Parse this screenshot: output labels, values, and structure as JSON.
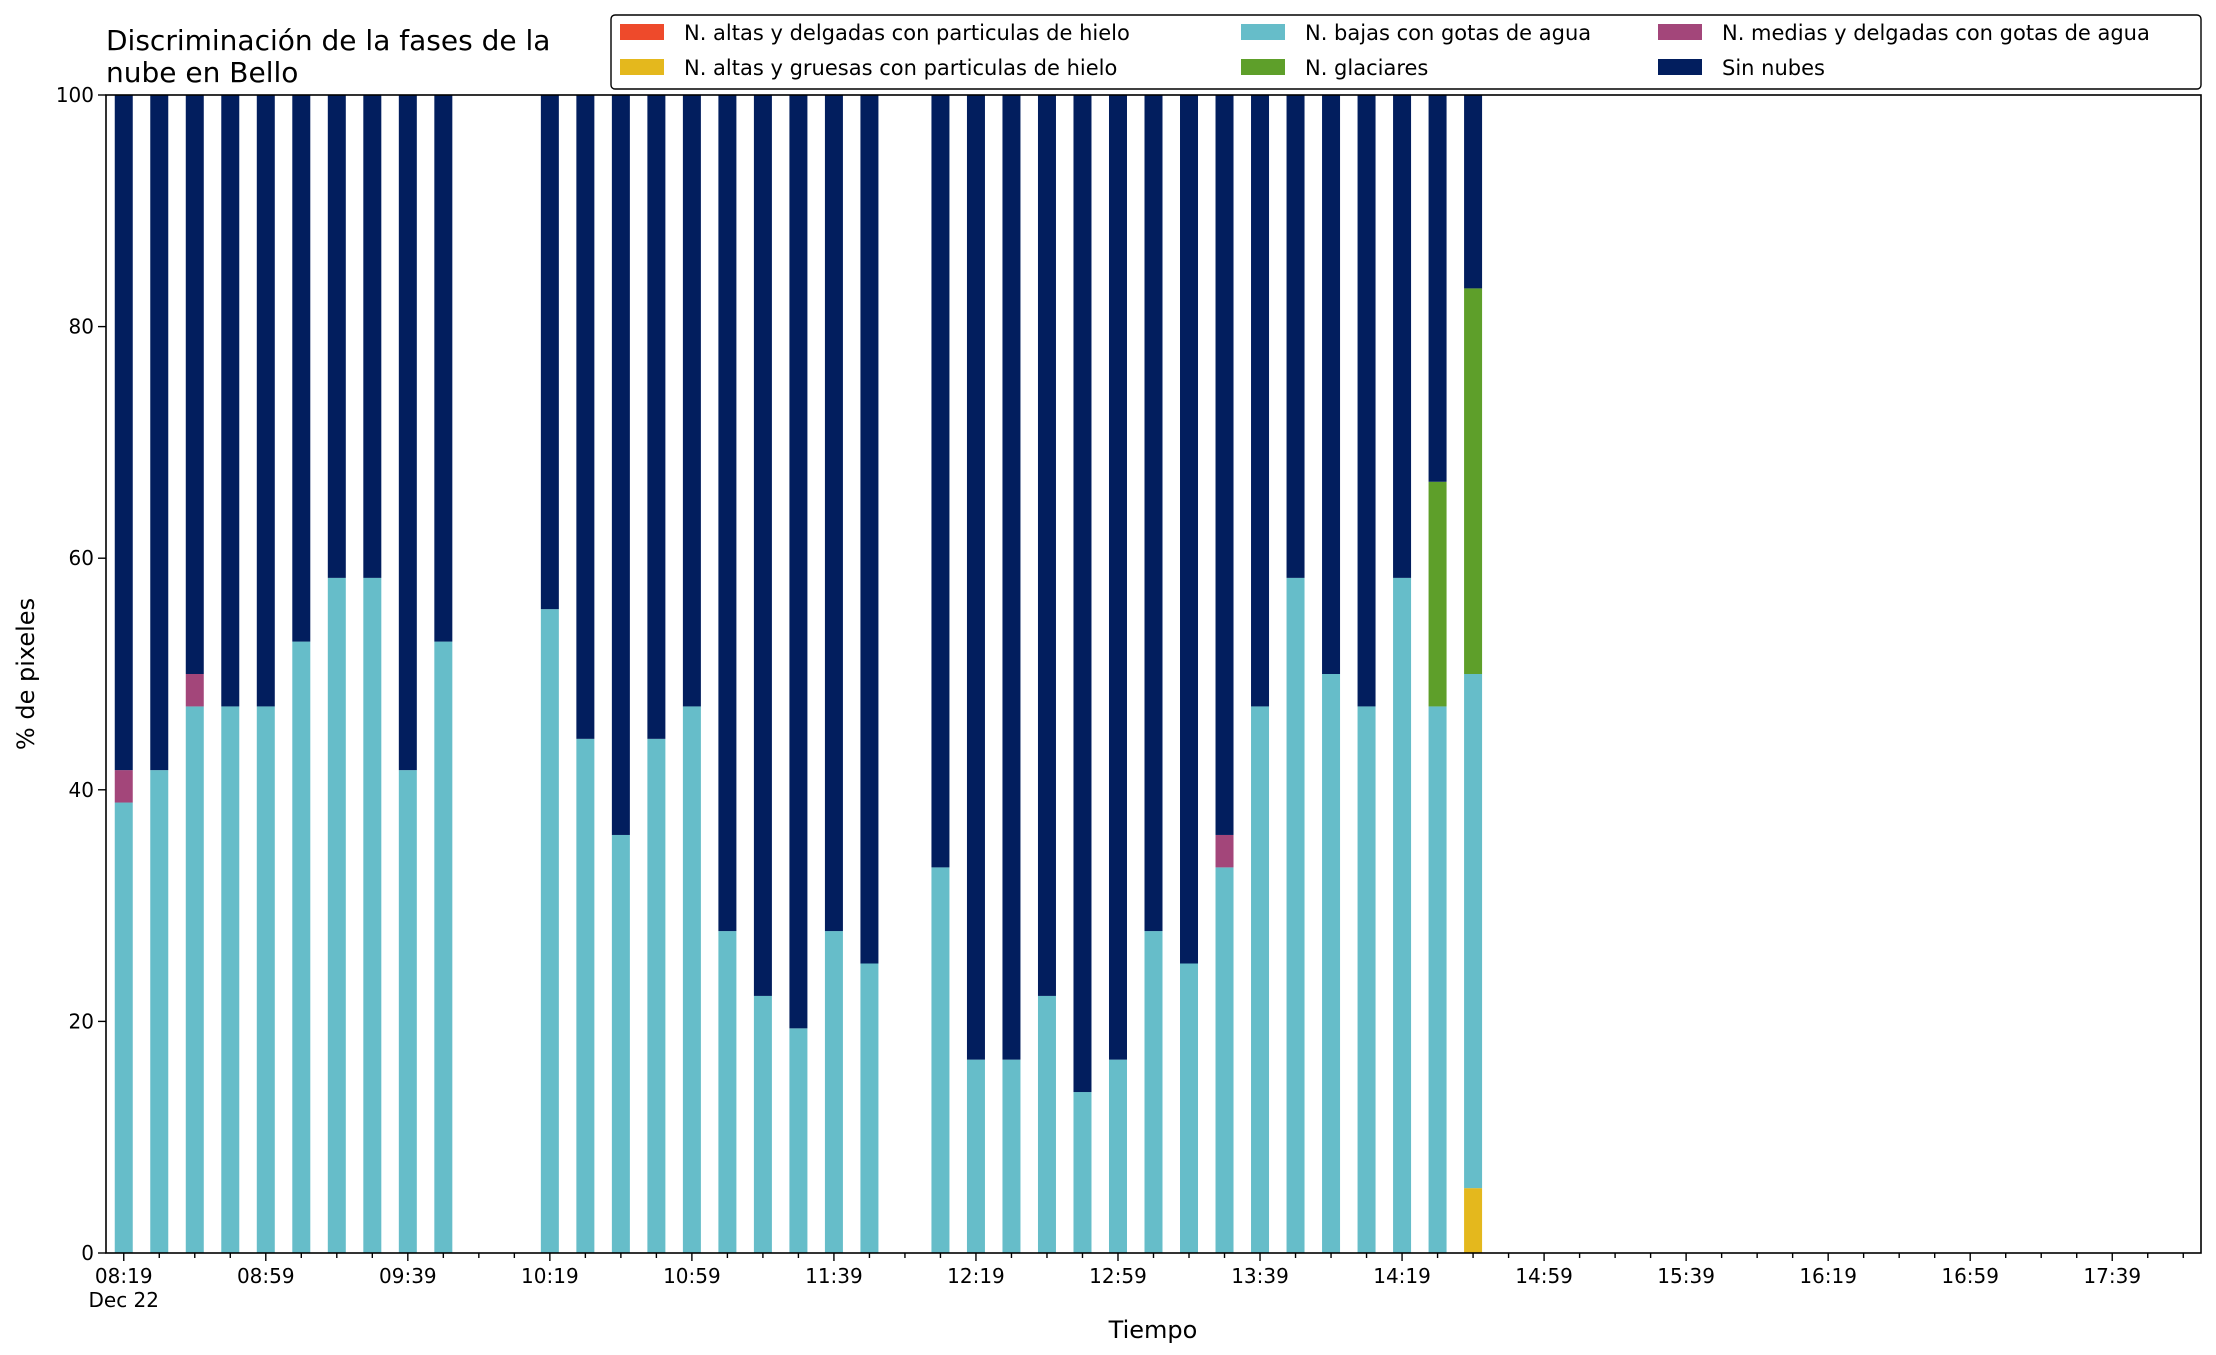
{
  "chart_data": {
    "type": "bar",
    "stacked": true,
    "title": [
      "Discriminación de la fases de la",
      "nube en Bello"
    ],
    "xlabel": "Tiempo",
    "ylabel": "% de pixeles",
    "ylim": [
      0,
      100
    ],
    "yticks": [
      0,
      20,
      40,
      60,
      80,
      100
    ],
    "grid": false,
    "legend_position": "top-right",
    "x_start": "08:19",
    "x_step_minutes": 10,
    "slots": 59,
    "xtick_labels": [
      "08:19",
      "08:59",
      "09:39",
      "10:19",
      "10:59",
      "11:39",
      "12:19",
      "12:59",
      "13:39",
      "14:19",
      "14:59",
      "15:39",
      "16:19",
      "16:59",
      "17:39"
    ],
    "xtick_first_sublabel": "Dec 22",
    "categories": [
      "08:19",
      "08:29",
      "08:39",
      "08:49",
      "08:59",
      "09:09",
      "09:19",
      "09:29",
      "09:39",
      "09:49",
      "10:19",
      "10:29",
      "10:39",
      "10:49",
      "10:59",
      "11:09",
      "11:19",
      "11:29",
      "11:39",
      "11:49",
      "12:09",
      "12:19",
      "12:29",
      "12:39",
      "12:49",
      "12:59",
      "13:09",
      "13:19",
      "13:29",
      "13:39",
      "13:49",
      "13:59",
      "14:09",
      "14:19",
      "14:29",
      "14:39"
    ],
    "series": [
      {
        "name": "N. altas y delgadas con particulas de hielo",
        "color": "#EE4A2B",
        "values": [
          0,
          0,
          0,
          0,
          0,
          0,
          0,
          0,
          0,
          0,
          0,
          0,
          0,
          0,
          0,
          0,
          0,
          0,
          0,
          0,
          0,
          0,
          0,
          0,
          0,
          0,
          0,
          0,
          0,
          0,
          0,
          0,
          0,
          0,
          0,
          0
        ]
      },
      {
        "name": "N. altas y gruesas con particulas de hielo",
        "color": "#E4B81D",
        "values": [
          0,
          0,
          0,
          0,
          0,
          0,
          0,
          0,
          0,
          0,
          0,
          0,
          0,
          0,
          0,
          0,
          0,
          0,
          0,
          0,
          0,
          0,
          0,
          0,
          0,
          0,
          0,
          0,
          0,
          0,
          0,
          0,
          0,
          0,
          0,
          5.6
        ]
      },
      {
        "name": "N. bajas con gotas de agua",
        "color": "#66BDC9",
        "values": [
          38.9,
          41.7,
          47.2,
          47.2,
          47.2,
          52.8,
          58.3,
          58.3,
          41.7,
          52.8,
          55.6,
          44.4,
          36.1,
          44.4,
          47.2,
          27.8,
          22.2,
          19.4,
          27.8,
          25.0,
          33.3,
          16.7,
          16.7,
          22.2,
          13.9,
          16.7,
          27.8,
          25.0,
          33.3,
          47.2,
          58.3,
          50.0,
          47.2,
          58.3,
          47.2,
          44.4
        ]
      },
      {
        "name": "N. glaciares",
        "color": "#5E9F2A",
        "values": [
          0,
          0,
          0,
          0,
          0,
          0,
          0,
          0,
          0,
          0,
          0,
          0,
          0,
          0,
          0,
          0,
          0,
          0,
          0,
          0,
          0,
          0,
          0,
          0,
          0,
          0,
          0,
          0,
          0,
          0,
          0,
          0,
          0,
          0,
          19.4,
          33.3
        ]
      },
      {
        "name": "N. medias y delgadas con gotas de agua",
        "color": "#A3467A",
        "values": [
          2.8,
          0,
          2.8,
          0,
          0,
          0,
          0,
          0,
          0,
          0,
          0,
          0,
          0,
          0,
          0,
          0,
          0,
          0,
          0,
          0,
          0,
          0,
          0,
          0,
          0,
          0,
          0,
          0,
          2.8,
          0,
          0,
          0,
          0,
          0,
          0,
          0
        ]
      },
      {
        "name": "Sin nubes",
        "color": "#021E5E",
        "values": [
          58.3,
          58.3,
          50.0,
          52.8,
          52.8,
          47.2,
          41.7,
          41.7,
          58.3,
          47.2,
          44.4,
          55.6,
          63.9,
          55.6,
          52.8,
          72.2,
          77.8,
          80.6,
          72.2,
          75.0,
          66.7,
          83.3,
          83.3,
          77.8,
          86.1,
          83.3,
          72.2,
          75.0,
          63.9,
          52.8,
          41.7,
          50.0,
          52.8,
          41.7,
          33.4,
          16.7
        ]
      }
    ]
  }
}
